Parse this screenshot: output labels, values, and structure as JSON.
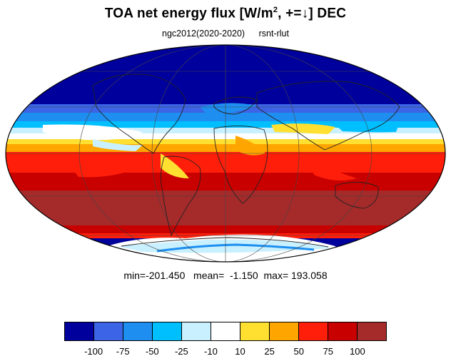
{
  "title": {
    "main": "TOA net energy flux  [W/m",
    "sup": "2",
    "rest": ", +=↓] DEC"
  },
  "subtitle": {
    "left": "ngc2012(2020-2020)",
    "right": "rsnt-rlut"
  },
  "stats": {
    "text": "min=-201.450   mean=  -1.150  max= 193.058"
  },
  "colorbar": {
    "colors": [
      "#00009c",
      "#3c64e6",
      "#1e8ff0",
      "#00bfff",
      "#c8f0ff",
      "#ffffff",
      "#ffe030",
      "#ffa500",
      "#ff1e0a",
      "#c80000",
      "#a52a2a"
    ],
    "tick_labels": [
      "-100",
      "-75",
      "-50",
      "-25",
      "-10",
      "10",
      "25",
      "50",
      "75",
      "100"
    ]
  },
  "map": {
    "projection": "Mollweide",
    "land_outline_color": "#222222",
    "grid_color": "#444444"
  }
}
